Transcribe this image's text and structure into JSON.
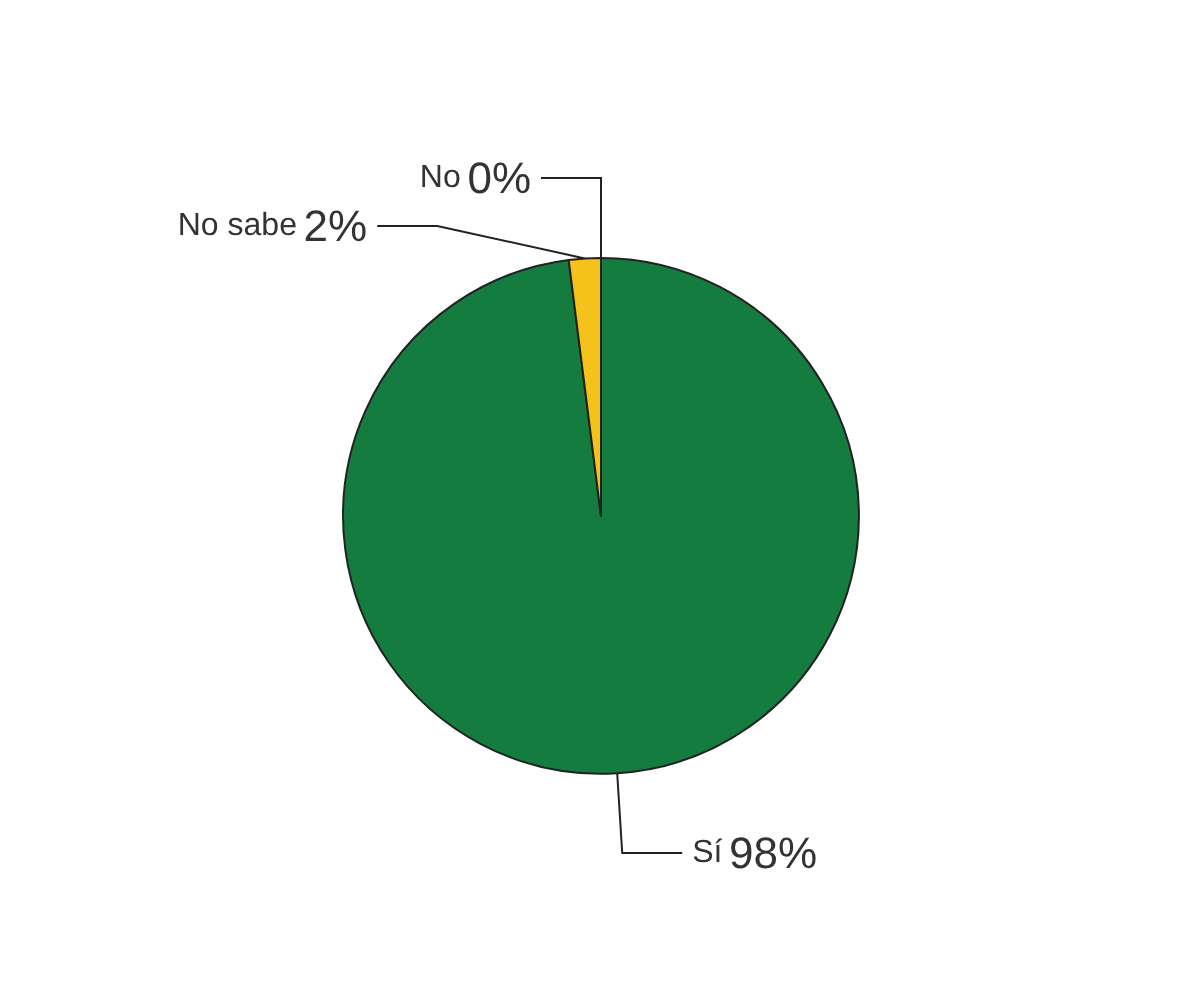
{
  "chart_data": {
    "type": "pie",
    "categories": [
      "Sí",
      "No sabe",
      "No"
    ],
    "values": [
      98,
      2,
      0
    ],
    "colors": [
      "#137c3e",
      "#f5c21b",
      "#9b2226"
    ],
    "value_labels": [
      "98%",
      "2%",
      "0%"
    ],
    "legend": false
  }
}
